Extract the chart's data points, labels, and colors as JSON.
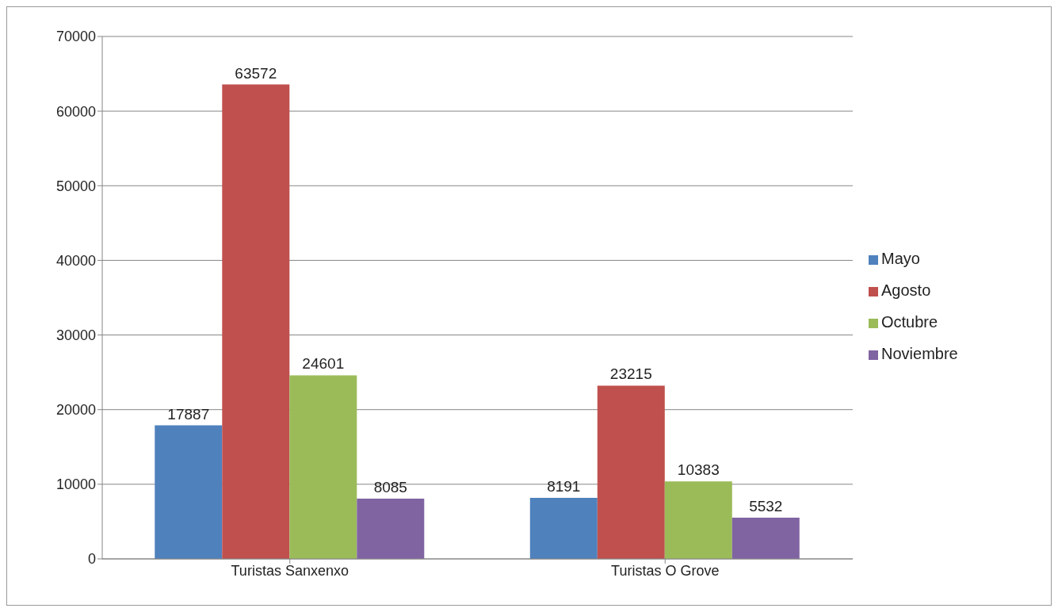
{
  "chart_data": {
    "type": "bar",
    "categories": [
      "Turistas Sanxenxo",
      "Turistas O Grove"
    ],
    "series": [
      {
        "name": "Mayo",
        "color": "#4f81bd",
        "values": [
          17887,
          8191
        ]
      },
      {
        "name": "Agosto",
        "color": "#c0504d",
        "values": [
          63572,
          23215
        ]
      },
      {
        "name": "Octubre",
        "color": "#9bbb59",
        "values": [
          24601,
          10383
        ]
      },
      {
        "name": "Noviembre",
        "color": "#8064a2",
        "values": [
          8085,
          5532
        ]
      }
    ],
    "ylim": [
      0,
      70000
    ],
    "yticks": [
      0,
      10000,
      20000,
      30000,
      40000,
      50000,
      60000,
      70000
    ],
    "grid": "y",
    "legend": "right",
    "data_labels": true
  }
}
